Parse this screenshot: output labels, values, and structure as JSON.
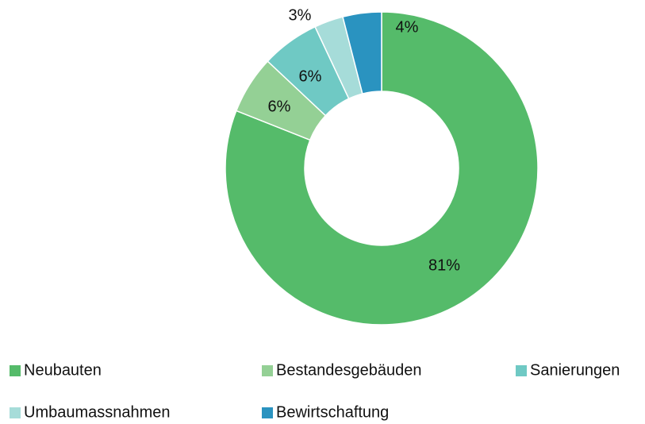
{
  "chart_data": {
    "type": "donut",
    "categories": [
      "Neubauten",
      "Bestandesgebäuden",
      "Sanierungen",
      "Umbaumassnahmen",
      "Bewirtschaftung"
    ],
    "values": [
      81,
      6,
      6,
      3,
      4
    ],
    "value_labels": [
      "81%",
      "6%",
      "6%",
      "3%",
      "4%"
    ],
    "colors": [
      "#55bb6a",
      "#94d095",
      "#6fc9c4",
      "#a6dcd9",
      "#2a93c0"
    ],
    "legend": "bottom"
  }
}
